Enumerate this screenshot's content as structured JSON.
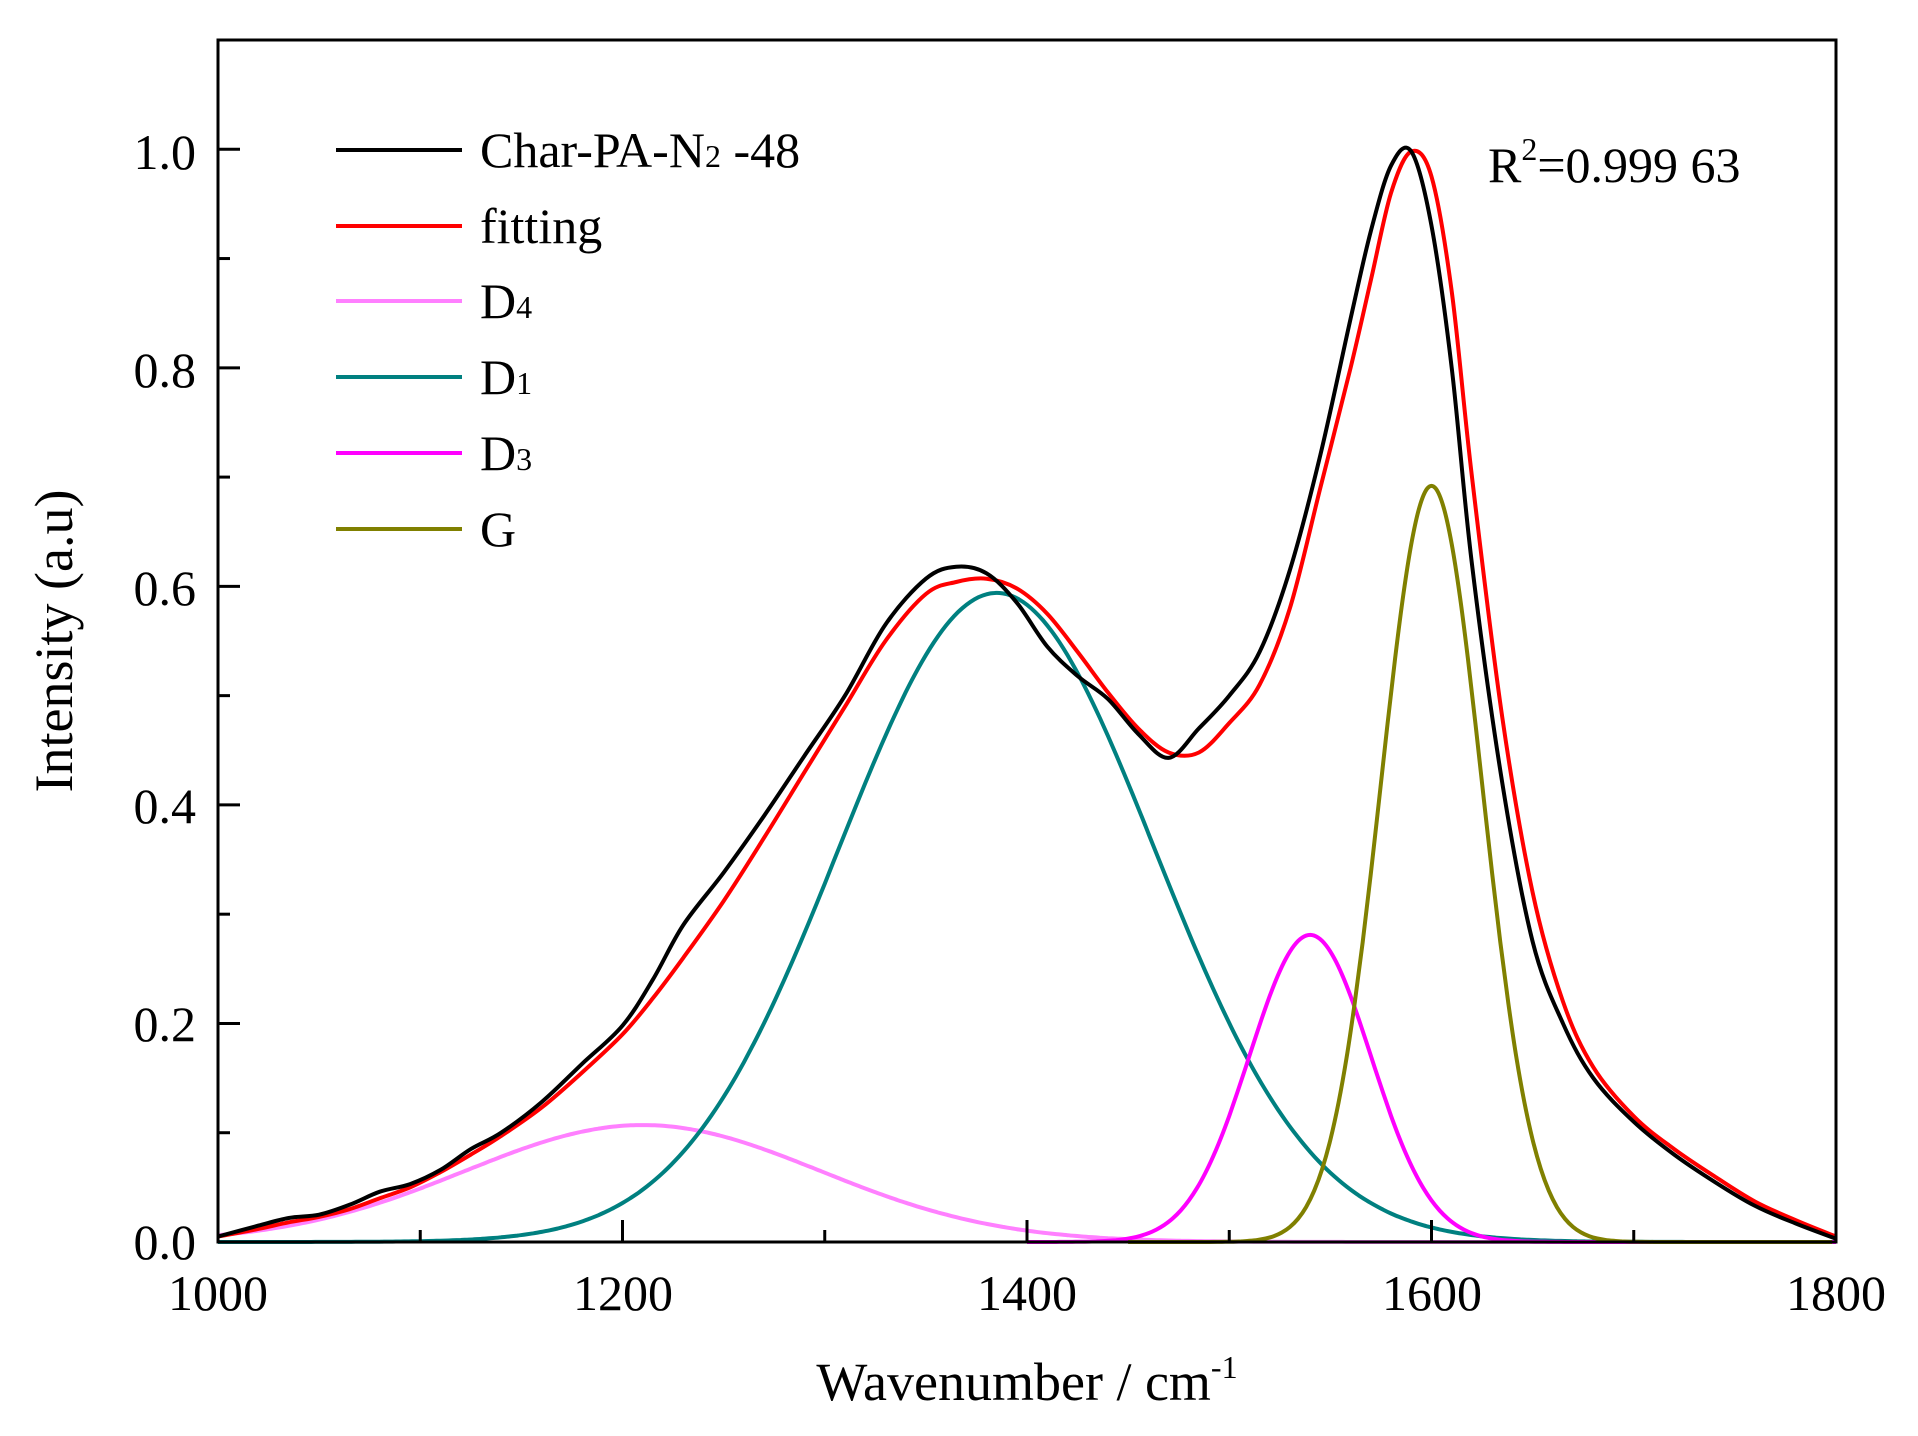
{
  "chart_data": {
    "type": "line",
    "xlabel": "Wavenumber / cm",
    "xlabel_sup": "-1",
    "ylabel": "Intensity (a.u)",
    "xlim": [
      1000,
      1800
    ],
    "ylim": [
      0,
      1.1
    ],
    "x_major_ticks": [
      1000,
      1200,
      1400,
      1600,
      1800
    ],
    "x_tick_labels": [
      "1000",
      "1200",
      "1400",
      "1600",
      "1800"
    ],
    "y_major_ticks": [
      0,
      0.2,
      0.4,
      0.6,
      0.8,
      1.0
    ],
    "y_tick_labels": [
      "0.0",
      "0.2",
      "0.4",
      "0.6",
      "0.8",
      "1.0"
    ],
    "annotation": {
      "prefix": "R",
      "sup": "2",
      "text": "=0.999 63"
    },
    "legend_position": "top-left",
    "series": [
      {
        "name": "Char-PA-N2 -48",
        "label_main": "Char-PA-N",
        "label_sub": "2",
        "label_tail": " -48",
        "color": "#000000",
        "x": [
          1000,
          1020,
          1035,
          1050,
          1065,
          1080,
          1095,
          1110,
          1125,
          1140,
          1160,
          1180,
          1200,
          1215,
          1230,
          1250,
          1270,
          1290,
          1310,
          1330,
          1350,
          1365,
          1380,
          1395,
          1410,
          1425,
          1440,
          1455,
          1470,
          1485,
          1500,
          1515,
          1530,
          1545,
          1560,
          1570,
          1580,
          1590,
          1600,
          1610,
          1620,
          1635,
          1650,
          1665,
          1680,
          1700,
          1720,
          1740,
          1760,
          1780,
          1800
        ],
        "y": [
          0.005,
          0.015,
          0.022,
          0.025,
          0.034,
          0.046,
          0.053,
          0.066,
          0.085,
          0.1,
          0.128,
          0.163,
          0.198,
          0.24,
          0.29,
          0.338,
          0.39,
          0.445,
          0.5,
          0.565,
          0.607,
          0.618,
          0.612,
          0.585,
          0.545,
          0.518,
          0.497,
          0.465,
          0.443,
          0.47,
          0.5,
          0.54,
          0.615,
          0.72,
          0.845,
          0.925,
          0.985,
          0.998,
          0.93,
          0.8,
          0.62,
          0.42,
          0.275,
          0.2,
          0.15,
          0.11,
          0.08,
          0.055,
          0.033,
          0.017,
          0.003
        ]
      },
      {
        "name": "fitting",
        "color": "#ff0000",
        "x": [
          1000,
          1020,
          1035,
          1050,
          1065,
          1080,
          1095,
          1110,
          1125,
          1140,
          1160,
          1180,
          1200,
          1215,
          1230,
          1250,
          1270,
          1290,
          1310,
          1330,
          1350,
          1365,
          1380,
          1395,
          1410,
          1425,
          1440,
          1455,
          1470,
          1485,
          1500,
          1515,
          1530,
          1545,
          1560,
          1570,
          1580,
          1590,
          1600,
          1610,
          1620,
          1635,
          1650,
          1665,
          1680,
          1700,
          1720,
          1740,
          1760,
          1780,
          1800
        ],
        "y": [
          0.005,
          0.012,
          0.018,
          0.023,
          0.03,
          0.04,
          0.05,
          0.064,
          0.08,
          0.097,
          0.123,
          0.155,
          0.19,
          0.223,
          0.26,
          0.312,
          0.37,
          0.43,
          0.49,
          0.55,
          0.593,
          0.604,
          0.607,
          0.598,
          0.575,
          0.54,
          0.503,
          0.47,
          0.448,
          0.448,
          0.475,
          0.51,
          0.58,
          0.69,
          0.8,
          0.88,
          0.96,
          0.998,
          0.975,
          0.87,
          0.7,
          0.48,
          0.32,
          0.22,
          0.16,
          0.115,
          0.085,
          0.06,
          0.037,
          0.02,
          0.005
        ]
      },
      {
        "name": "D4",
        "label_main": "D",
        "label_sub": "4",
        "label_tail": "",
        "color": "#ff80ff",
        "peak_type": "gaussian",
        "center": 1210,
        "height": 0.107,
        "sigma": 88,
        "x_range": [
          1000,
          1800
        ]
      },
      {
        "name": "D1",
        "label_main": "D",
        "label_sub": "1",
        "label_tail": "",
        "color": "#008080",
        "peak_type": "gaussian",
        "center": 1385,
        "height": 0.594,
        "sigma": 78,
        "x_range": [
          1000,
          1800
        ]
      },
      {
        "name": "D3",
        "label_main": "D",
        "label_sub": "3",
        "label_tail": "",
        "color": "#ff00ff",
        "peak_type": "gaussian",
        "center": 1540,
        "height": 0.281,
        "sigma": 30,
        "x_range": [
          1400,
          1800
        ]
      },
      {
        "name": "G",
        "label_main": "G",
        "label_sub": "",
        "label_tail": "",
        "color": "#808000",
        "peak_type": "gaussian",
        "center": 1600,
        "height": 0.692,
        "sigma": 25,
        "x_range": [
          1450,
          1800
        ]
      }
    ]
  }
}
